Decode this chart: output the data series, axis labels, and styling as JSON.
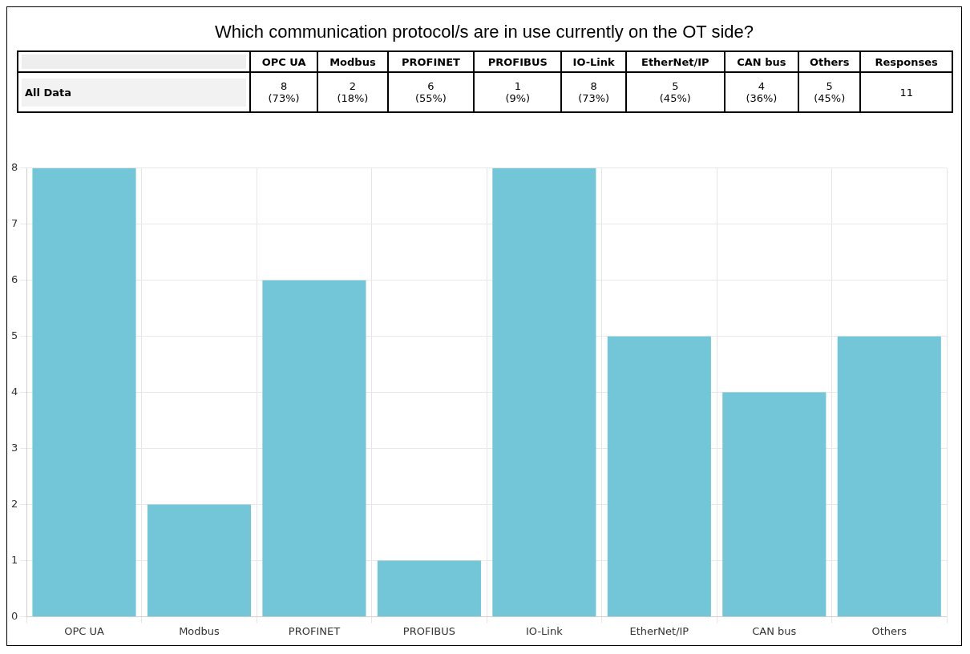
{
  "chart_data": {
    "type": "bar",
    "title": "Which communication protocol/s are in use currently on the OT side?",
    "categories": [
      "OPC UA",
      "Modbus",
      "PROFINET",
      "PROFIBUS",
      "IO-Link",
      "EtherNet/IP",
      "CAN bus",
      "Others"
    ],
    "values": [
      8,
      2,
      6,
      1,
      8,
      5,
      4,
      5
    ],
    "color": "#72c6d8",
    "ylim": [
      0,
      8
    ],
    "yticks": [
      0,
      1,
      2,
      3,
      4,
      5,
      6,
      7,
      8
    ],
    "grid": true,
    "legend": false,
    "annotations": [
      "All Data",
      "Responses",
      "11",
      "8\n(73%)",
      "2\n(18%)",
      "6\n(55%)",
      "1\n(9%)",
      "8\n(73%)",
      "5\n(45%)",
      "4\n(36%)",
      "5\n(45%)"
    ]
  }
}
